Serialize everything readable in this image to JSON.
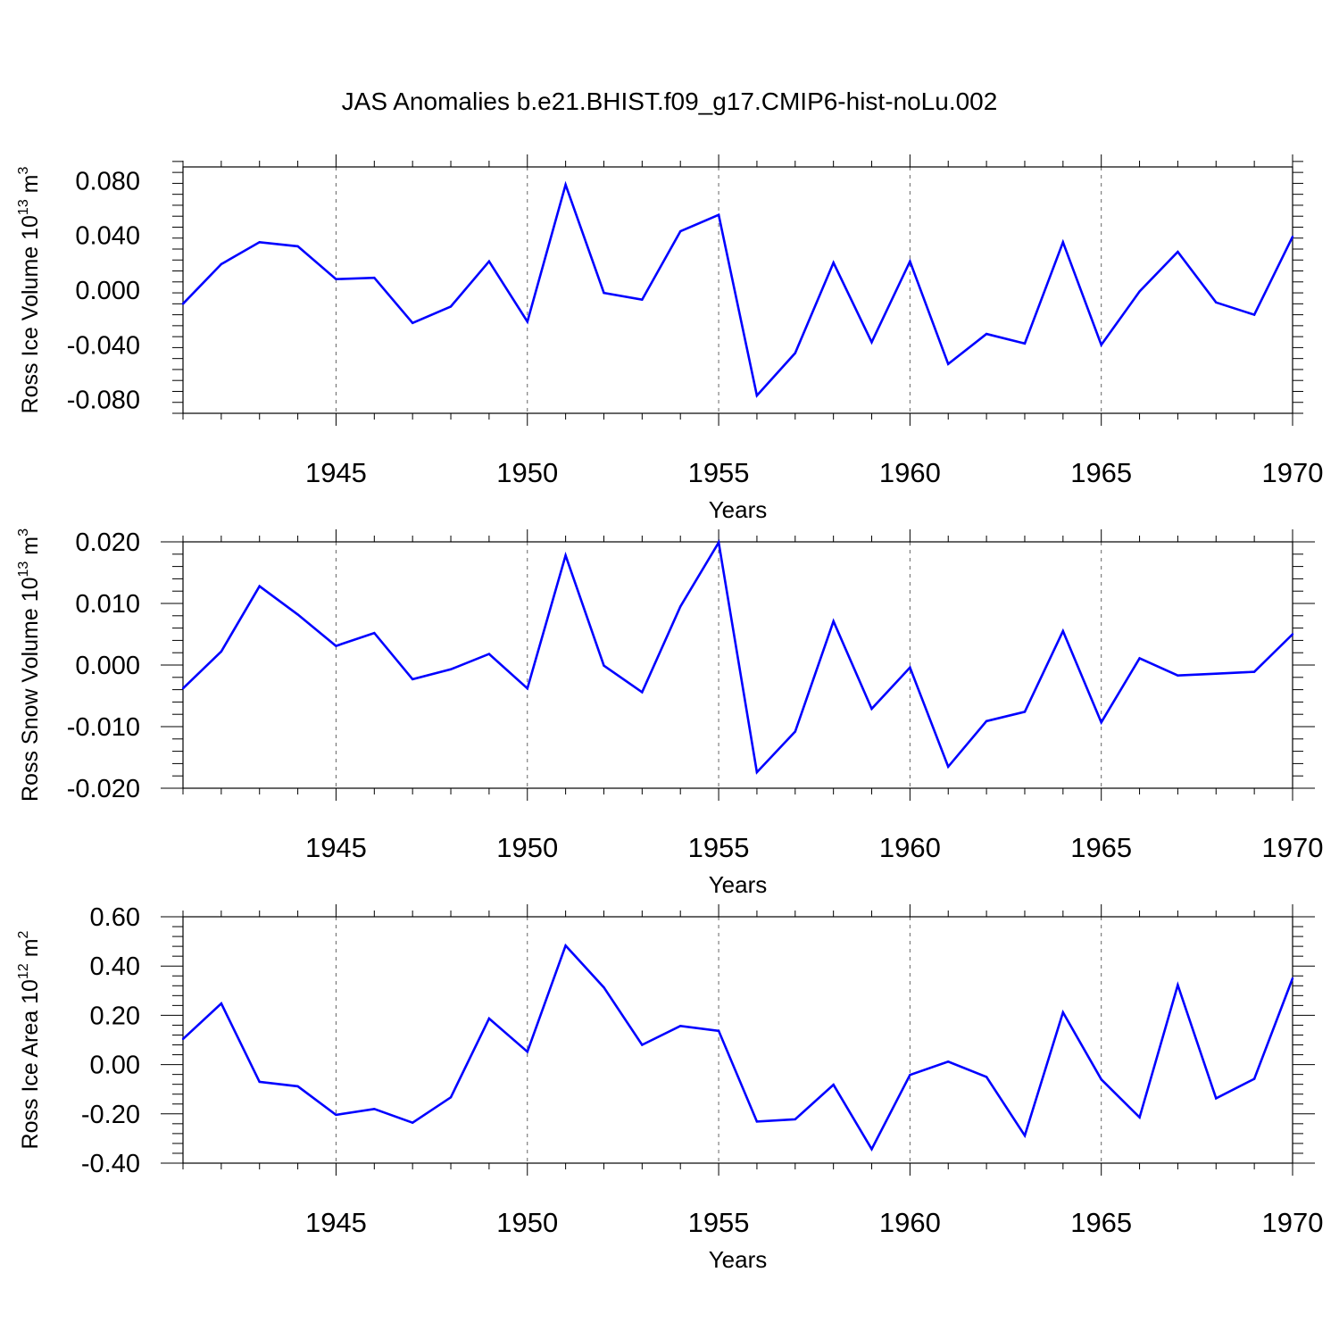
{
  "title": "JAS Anomalies b.e21.BHIST.f09_g17.CMIP6-hist-noLu.002",
  "line_color": "#0000ff",
  "chart_data": [
    {
      "type": "line",
      "ylabel_main": "Ross Ice Volume 10",
      "ylabel_exp": "13",
      "ylabel_unit": "m",
      "ylabel_unit_exp": "3",
      "xlabel": "Years",
      "xlim": [
        1941,
        1970
      ],
      "ylim": [
        -0.09,
        0.09
      ],
      "yticks": [
        -0.08,
        -0.04,
        0.0,
        0.04,
        0.08
      ],
      "ytick_labels": [
        "-0.080",
        "-0.040",
        "0.000",
        "0.040",
        "0.080"
      ],
      "xticks": [
        1945,
        1950,
        1955,
        1960,
        1965,
        1970
      ],
      "xtick_labels": [
        "1945",
        "1950",
        "1955",
        "1960",
        "1965",
        "1970"
      ],
      "grid": "dashed vertical at major x ticks",
      "x": [
        1941,
        1942,
        1943,
        1944,
        1945,
        1946,
        1947,
        1948,
        1949,
        1950,
        1951,
        1952,
        1953,
        1954,
        1955,
        1956,
        1957,
        1958,
        1959,
        1960,
        1961,
        1962,
        1963,
        1964,
        1965,
        1966,
        1967,
        1968,
        1969,
        1970
      ],
      "values": [
        -0.01,
        0.019,
        0.035,
        0.032,
        0.008,
        0.009,
        -0.024,
        -0.012,
        0.021,
        -0.023,
        0.077,
        -0.002,
        -0.007,
        0.043,
        0.055,
        -0.077,
        -0.046,
        0.02,
        -0.038,
        0.021,
        -0.054,
        -0.032,
        -0.039,
        0.035,
        -0.04,
        -0.001,
        0.028,
        -0.009,
        -0.018,
        0.039
      ]
    },
    {
      "type": "line",
      "ylabel_main": "Ross Snow Volume 10",
      "ylabel_exp": "13",
      "ylabel_unit": "m",
      "ylabel_unit_exp": "3",
      "xlabel": "Years",
      "xlim": [
        1941,
        1970
      ],
      "ylim": [
        -0.02,
        0.02
      ],
      "yticks": [
        -0.02,
        -0.01,
        0.0,
        0.01,
        0.02
      ],
      "ytick_labels": [
        "-0.020",
        "-0.010",
        "0.000",
        "0.010",
        "0.020"
      ],
      "xticks": [
        1945,
        1950,
        1955,
        1960,
        1965,
        1970
      ],
      "xtick_labels": [
        "1945",
        "1950",
        "1955",
        "1960",
        "1965",
        "1970"
      ],
      "grid": "dashed vertical at major x ticks",
      "x": [
        1941,
        1942,
        1943,
        1944,
        1945,
        1946,
        1947,
        1948,
        1949,
        1950,
        1951,
        1952,
        1953,
        1954,
        1955,
        1956,
        1957,
        1958,
        1959,
        1960,
        1961,
        1962,
        1963,
        1964,
        1965,
        1966,
        1967,
        1968,
        1969,
        1970
      ],
      "values": [
        -0.0038,
        0.0022,
        0.0128,
        0.0082,
        0.0031,
        0.0052,
        -0.0023,
        -0.0007,
        0.0018,
        -0.0038,
        0.0178,
        -0.0001,
        -0.0044,
        0.0095,
        0.0199,
        -0.0174,
        -0.0108,
        0.0071,
        -0.0071,
        -0.0004,
        -0.0165,
        -0.0091,
        -0.0076,
        0.0055,
        -0.0093,
        0.0011,
        -0.0017,
        -0.0014,
        -0.0011,
        0.005
      ]
    },
    {
      "type": "line",
      "ylabel_main": "Ross Ice Area 10",
      "ylabel_exp": "12",
      "ylabel_unit": "m",
      "ylabel_unit_exp": "2",
      "xlabel": "Years",
      "xlim": [
        1941,
        1970
      ],
      "ylim": [
        -0.4,
        0.6
      ],
      "yticks": [
        -0.4,
        -0.2,
        0.0,
        0.2,
        0.4,
        0.6
      ],
      "ytick_labels": [
        "-0.40",
        "-0.20",
        "0.00",
        "0.20",
        "0.40",
        "0.60"
      ],
      "xticks": [
        1945,
        1950,
        1955,
        1960,
        1965,
        1970
      ],
      "xtick_labels": [
        "1945",
        "1950",
        "1955",
        "1960",
        "1965",
        "1970"
      ],
      "grid": "dashed vertical at major x ticks",
      "x": [
        1941,
        1942,
        1943,
        1944,
        1945,
        1946,
        1947,
        1948,
        1949,
        1950,
        1951,
        1952,
        1953,
        1954,
        1955,
        1956,
        1957,
        1958,
        1959,
        1960,
        1961,
        1962,
        1963,
        1964,
        1965,
        1966,
        1967,
        1968,
        1969,
        1970
      ],
      "values": [
        0.104,
        0.248,
        -0.07,
        -0.088,
        -0.204,
        -0.18,
        -0.236,
        -0.133,
        0.187,
        0.052,
        0.483,
        0.313,
        0.08,
        0.157,
        0.137,
        -0.231,
        -0.222,
        -0.082,
        -0.343,
        -0.042,
        0.012,
        -0.05,
        -0.288,
        0.212,
        -0.06,
        -0.214,
        0.323,
        -0.137,
        -0.058,
        0.35
      ]
    }
  ]
}
